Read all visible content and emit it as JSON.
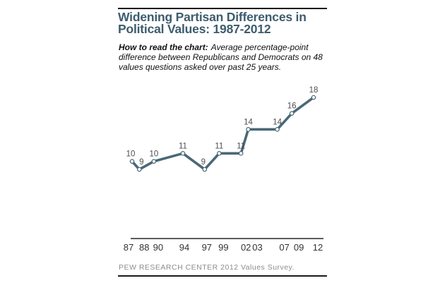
{
  "header": {
    "title": "Widening Partisan Differences in Political Values: 1987-2012",
    "title_lines": [
      "Widening Partisan Differences in",
      "Political Values: 1987-2012"
    ]
  },
  "how_to_read": {
    "label": "How to read the chart:",
    "text": "Average percentage-point difference between Republicans and Democrats on 48 values questions asked over past 25 years."
  },
  "footer": {
    "source": "PEW RESEARCH CENTER 2012 Values Survey."
  },
  "chart_data": {
    "type": "line",
    "title": "Widening Partisan Differences in Political Values: 1987-2012",
    "x": [
      1987,
      1988,
      1990,
      1994,
      1997,
      1999,
      2002,
      2003,
      2007,
      2009,
      2012
    ],
    "tick_labels": [
      "87",
      "88",
      "90",
      "94",
      "97",
      "99",
      "02",
      "03",
      "07",
      "09",
      "12"
    ],
    "values": [
      10,
      9,
      10,
      11,
      9,
      11,
      11,
      14,
      14,
      16,
      18
    ],
    "data_labels": [
      "10",
      "9",
      "10",
      "11",
      "9",
      "11",
      "11",
      "14",
      "14",
      "16",
      "18"
    ],
    "xlabel": "",
    "ylabel": "",
    "xlim": [
      1986,
      2013
    ],
    "ylim": [
      0,
      20
    ],
    "grid": false,
    "legend": "none",
    "marker": "open-circle"
  },
  "colors": {
    "title": "#3d5c6e",
    "line": "#4a6878",
    "marker_fill": "#ffffff",
    "data_label": "#4d4d4d",
    "tick_label": "#333333",
    "axis": "#262626",
    "rule": "#1a1a1a",
    "footer": "#8c8c8c",
    "background": "#ffffff"
  }
}
